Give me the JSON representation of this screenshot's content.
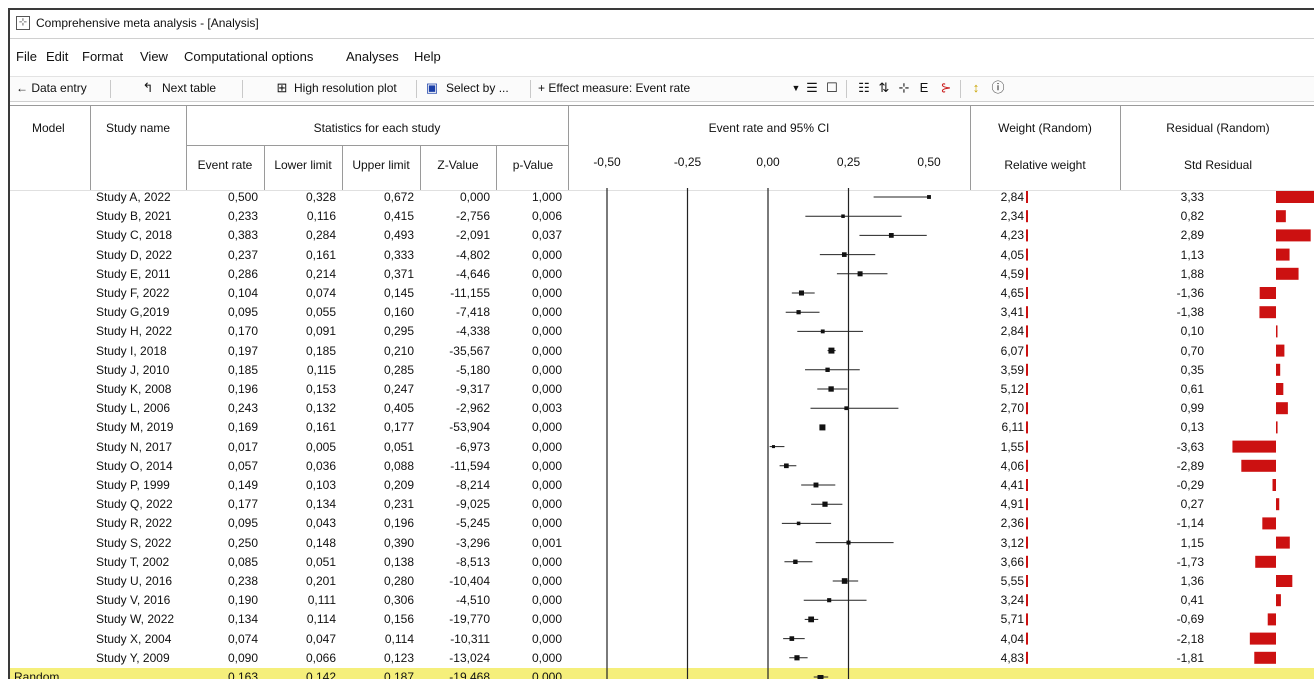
{
  "window": {
    "title": "Comprehensive meta analysis - [Analysis]"
  },
  "menu": [
    "File",
    "Edit",
    "Format",
    "View",
    "Computational options",
    "Analyses",
    "Help"
  ],
  "toolbar": {
    "data_entry": "← Data entry",
    "next_table": "Next table",
    "high_res": "High resolution plot",
    "select_by": "Select by ...",
    "effect_measure": "+ Effect measure: Event rate"
  },
  "headers": {
    "model": "Model",
    "study_name": "Study name",
    "stats_group": "Statistics for each study",
    "event_rate": "Event rate",
    "lower": "Lower limit",
    "upper": "Upper limit",
    "z": "Z-Value",
    "p": "p-Value",
    "plot_title": "Event rate and 95% CI",
    "plot_ticks": [
      "-0,50",
      "-0,25",
      "0,00",
      "0,25",
      "0,50"
    ],
    "weight_group": "Weight (Random)",
    "relative_weight": "Relative weight",
    "residual_group": "Residual (Random)",
    "std_residual": "Std Residual"
  },
  "studies": [
    {
      "name": "Study A, 2022",
      "rate": "0,500",
      "lower": "0,328",
      "upper": "0,672",
      "z": "0,000",
      "p": "1,000",
      "weight": "2,84",
      "residual": "3,33"
    },
    {
      "name": "Study B, 2021",
      "rate": "0,233",
      "lower": "0,116",
      "upper": "0,415",
      "z": "-2,756",
      "p": "0,006",
      "weight": "2,34",
      "residual": "0,82"
    },
    {
      "name": "Study C, 2018",
      "rate": "0,383",
      "lower": "0,284",
      "upper": "0,493",
      "z": "-2,091",
      "p": "0,037",
      "weight": "4,23",
      "residual": "2,89"
    },
    {
      "name": "Study D, 2022",
      "rate": "0,237",
      "lower": "0,161",
      "upper": "0,333",
      "z": "-4,802",
      "p": "0,000",
      "weight": "4,05",
      "residual": "1,13"
    },
    {
      "name": "Study E, 2011",
      "rate": "0,286",
      "lower": "0,214",
      "upper": "0,371",
      "z": "-4,646",
      "p": "0,000",
      "weight": "4,59",
      "residual": "1,88"
    },
    {
      "name": "Study F, 2022",
      "rate": "0,104",
      "lower": "0,074",
      "upper": "0,145",
      "z": "-11,155",
      "p": "0,000",
      "weight": "4,65",
      "residual": "-1,36"
    },
    {
      "name": "Study G,2019",
      "rate": "0,095",
      "lower": "0,055",
      "upper": "0,160",
      "z": "-7,418",
      "p": "0,000",
      "weight": "3,41",
      "residual": "-1,38"
    },
    {
      "name": "Study H, 2022",
      "rate": "0,170",
      "lower": "0,091",
      "upper": "0,295",
      "z": "-4,338",
      "p": "0,000",
      "weight": "2,84",
      "residual": "0,10"
    },
    {
      "name": "Study I, 2018",
      "rate": "0,197",
      "lower": "0,185",
      "upper": "0,210",
      "z": "-35,567",
      "p": "0,000",
      "weight": "6,07",
      "residual": "0,70"
    },
    {
      "name": "Study J, 2010",
      "rate": "0,185",
      "lower": "0,115",
      "upper": "0,285",
      "z": "-5,180",
      "p": "0,000",
      "weight": "3,59",
      "residual": "0,35"
    },
    {
      "name": "Study K, 2008",
      "rate": "0,196",
      "lower": "0,153",
      "upper": "0,247",
      "z": "-9,317",
      "p": "0,000",
      "weight": "5,12",
      "residual": "0,61"
    },
    {
      "name": "Study L, 2006",
      "rate": "0,243",
      "lower": "0,132",
      "upper": "0,405",
      "z": "-2,962",
      "p": "0,003",
      "weight": "2,70",
      "residual": "0,99"
    },
    {
      "name": "Study M, 2019",
      "rate": "0,169",
      "lower": "0,161",
      "upper": "0,177",
      "z": "-53,904",
      "p": "0,000",
      "weight": "6,11",
      "residual": "0,13"
    },
    {
      "name": "Study N, 2017",
      "rate": "0,017",
      "lower": "0,005",
      "upper": "0,051",
      "z": "-6,973",
      "p": "0,000",
      "weight": "1,55",
      "residual": "-3,63"
    },
    {
      "name": "Study O, 2014",
      "rate": "0,057",
      "lower": "0,036",
      "upper": "0,088",
      "z": "-11,594",
      "p": "0,000",
      "weight": "4,06",
      "residual": "-2,89"
    },
    {
      "name": "Study P, 1999",
      "rate": "0,149",
      "lower": "0,103",
      "upper": "0,209",
      "z": "-8,214",
      "p": "0,000",
      "weight": "4,41",
      "residual": "-0,29"
    },
    {
      "name": "Study Q, 2022",
      "rate": "0,177",
      "lower": "0,134",
      "upper": "0,231",
      "z": "-9,025",
      "p": "0,000",
      "weight": "4,91",
      "residual": "0,27"
    },
    {
      "name": "Study R, 2022",
      "rate": "0,095",
      "lower": "0,043",
      "upper": "0,196",
      "z": "-5,245",
      "p": "0,000",
      "weight": "2,36",
      "residual": "-1,14"
    },
    {
      "name": "Study S, 2022",
      "rate": "0,250",
      "lower": "0,148",
      "upper": "0,390",
      "z": "-3,296",
      "p": "0,001",
      "weight": "3,12",
      "residual": "1,15"
    },
    {
      "name": "Study T, 2002",
      "rate": "0,085",
      "lower": "0,051",
      "upper": "0,138",
      "z": "-8,513",
      "p": "0,000",
      "weight": "3,66",
      "residual": "-1,73"
    },
    {
      "name": "Study U, 2016",
      "rate": "0,238",
      "lower": "0,201",
      "upper": "0,280",
      "z": "-10,404",
      "p": "0,000",
      "weight": "5,55",
      "residual": "1,36"
    },
    {
      "name": "Study V, 2016",
      "rate": "0,190",
      "lower": "0,111",
      "upper": "0,306",
      "z": "-4,510",
      "p": "0,000",
      "weight": "3,24",
      "residual": "0,41"
    },
    {
      "name": "Study W, 2022",
      "rate": "0,134",
      "lower": "0,114",
      "upper": "0,156",
      "z": "-19,770",
      "p": "0,000",
      "weight": "5,71",
      "residual": "-0,69"
    },
    {
      "name": "Study X, 2004",
      "rate": "0,074",
      "lower": "0,047",
      "upper": "0,114",
      "z": "-10,311",
      "p": "0,000",
      "weight": "4,04",
      "residual": "-2,18"
    },
    {
      "name": "Study Y, 2009",
      "rate": "0,090",
      "lower": "0,066",
      "upper": "0,123",
      "z": "-13,024",
      "p": "0,000",
      "weight": "4,83",
      "residual": "-1,81"
    }
  ],
  "summary": {
    "label": "Random",
    "rate": "0,163",
    "lower": "0,142",
    "upper": "0,187",
    "z": "-19,468",
    "p": "0,000"
  },
  "colors": {
    "bar": "#cc1111",
    "random_row": "#f5ef7b"
  }
}
